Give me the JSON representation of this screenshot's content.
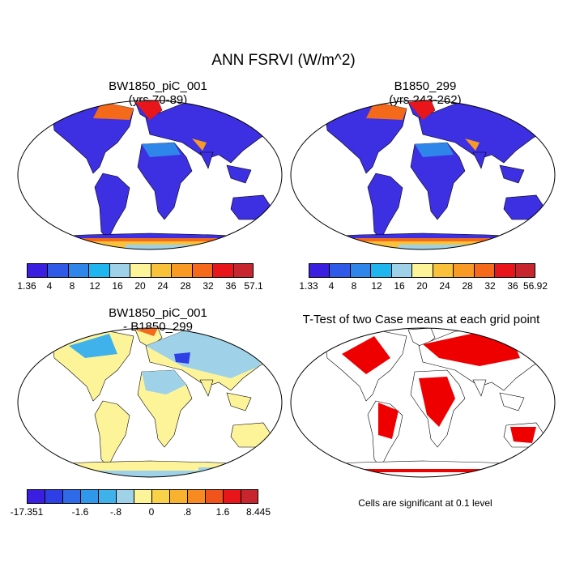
{
  "title": "ANN FSRVI (W/m^2)",
  "panels": [
    {
      "title_line1": "BW1850_piC_001",
      "title_line2": "(yrs 70-89)"
    },
    {
      "title_line1": "B1850_299",
      "title_line2": "(yrs 243-262)"
    },
    {
      "title_line1": "BW1850_piC_001",
      "title_line2": "- B1850_299"
    },
    {
      "title_line1": "T-Test of two Case means at each grid point",
      "title_line2": ""
    }
  ],
  "colorbars": {
    "panel1": {
      "labels": [
        "1.36",
        "4",
        "8",
        "12",
        "16",
        "20",
        "24",
        "28",
        "32",
        "36",
        "57.1"
      ],
      "colors": [
        "#3b1fe0",
        "#2f5ae8",
        "#2f86ea",
        "#1fb5ef",
        "#9fd2e8",
        "#fdf49a",
        "#f9c23a",
        "#f99a24",
        "#f46a1a",
        "#e8161a",
        "#c8262e"
      ]
    },
    "panel2": {
      "labels": [
        "1.33",
        "4",
        "8",
        "12",
        "16",
        "20",
        "24",
        "28",
        "32",
        "36",
        "56.92"
      ],
      "colors": [
        "#3b1fe0",
        "#2f5ae8",
        "#2f86ea",
        "#1fb5ef",
        "#9fd2e8",
        "#fdf49a",
        "#f9c23a",
        "#f99a24",
        "#f46a1a",
        "#e8161a",
        "#c8262e"
      ]
    },
    "diff": {
      "labels": [
        "-17.351",
        "-1.6",
        "-.8",
        "0",
        ".8",
        "1.6",
        "8.445"
      ],
      "colors": [
        "#3b1fe0",
        "#2f3fe6",
        "#2f6ae8",
        "#2f98ea",
        "#3fb2ec",
        "#9fd2e8",
        "#fdf49a",
        "#f9d24a",
        "#f9b230",
        "#f78a20",
        "#f0541a",
        "#e8161a",
        "#c8262e"
      ]
    }
  },
  "note": "Cells are significant at 0.1 level"
}
